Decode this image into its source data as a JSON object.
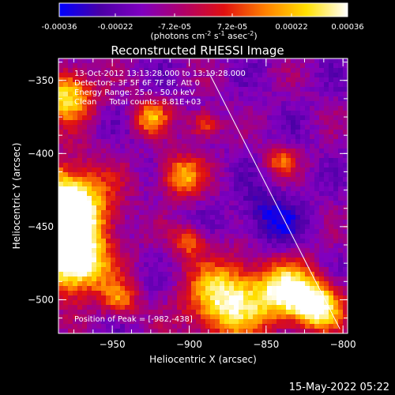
{
  "colorbar": {
    "ticks": [
      "-0.00036",
      "-0.00022",
      "-7.2e-05",
      "7.2e-05",
      "0.00022",
      "0.00036"
    ],
    "tick_values": [
      -0.00036,
      -0.00022,
      -7.2e-05,
      7.2e-05,
      0.00022,
      0.00036
    ],
    "range": [
      -0.00036,
      0.00036
    ],
    "unit_parts": [
      "(photons cm",
      "-2",
      " s",
      "-1",
      " asec",
      "-2",
      ")"
    ],
    "stops": [
      "#0000ff",
      "#4b00a6",
      "#8000c0",
      "#b0006a",
      "#e01010",
      "#ff8000",
      "#ffe000",
      "#ffffff"
    ]
  },
  "chart_data": {
    "type": "heatmap",
    "title": "Reconstructed RHESSI Image",
    "xlabel": "Heliocentric X (arcsec)",
    "ylabel": "Heliocentric Y (arcsec)",
    "xlim": [
      -985,
      -797
    ],
    "ylim": [
      -523,
      -335
    ],
    "x_ticks": [
      -950,
      -900,
      -850,
      -800
    ],
    "y_ticks": [
      -350,
      -400,
      -450,
      -500
    ],
    "annotations": [
      "13-Oct-2012 13:13:28.000 to 13:19:28.000",
      "Detectors: 3F 5F 6F 7F 8F, Att 0",
      "Energy Range: 25.0 - 50.0 keV",
      "Clean     Total counts: 8.81E+03"
    ],
    "peak_label": "Position of Peak = [-982,-438]",
    "peak": [
      -982,
      -438
    ],
    "limb_line": [
      [
        -887,
        -345
      ],
      [
        -802,
        -520
      ]
    ],
    "grid": "off",
    "colormap": "blue-purple-red-yellow-white"
  },
  "footer": {
    "timestamp": "15-May-2022 05:22"
  }
}
